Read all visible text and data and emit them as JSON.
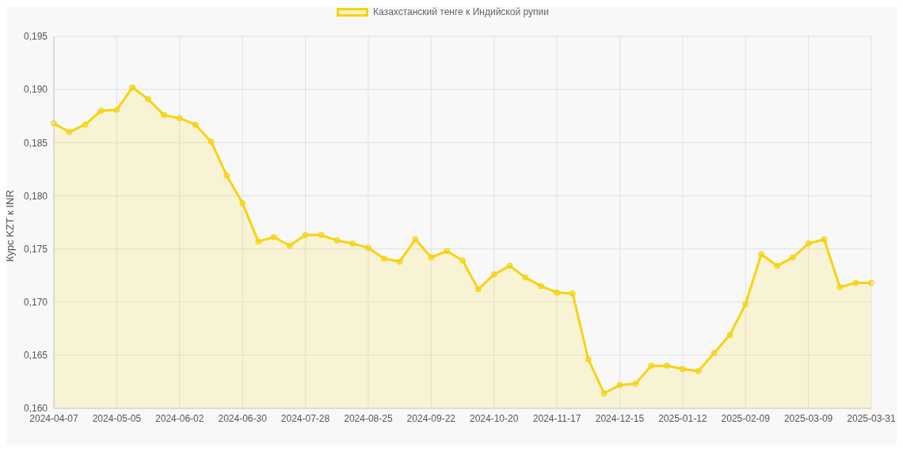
{
  "chart_data": {
    "type": "area",
    "categories": [
      "2024-04-07",
      null,
      null,
      null,
      "2024-05-05",
      null,
      null,
      null,
      "2024-06-02",
      null,
      null,
      null,
      "2024-06-30",
      null,
      null,
      null,
      "2024-07-28",
      null,
      null,
      null,
      "2024-08-25",
      null,
      null,
      null,
      "2024-09-22",
      null,
      null,
      null,
      "2024-10-20",
      null,
      null,
      null,
      "2024-11-17",
      null,
      null,
      null,
      "2024-12-15",
      null,
      null,
      null,
      "2025-01-12",
      null,
      null,
      null,
      "2025-02-09",
      null,
      null,
      null,
      "2025-03-09",
      null,
      null,
      null,
      "2025-03-31"
    ],
    "series": [
      {
        "name": "Казахстанский тенге к Индийской рупии",
        "color": "#f5d40f",
        "values": [
          0.1868,
          0.186,
          0.1867,
          0.188,
          0.1881,
          0.1902,
          0.1891,
          0.1876,
          0.1873,
          0.1867,
          0.1851,
          0.1819,
          0.1793,
          0.1757,
          0.1761,
          0.1753,
          0.1763,
          0.1763,
          0.1758,
          0.1755,
          0.1751,
          0.1741,
          0.1738,
          0.1759,
          0.1742,
          0.1748,
          0.1739,
          0.1712,
          0.1726,
          0.1734,
          0.1723,
          0.1715,
          0.1709,
          0.1708,
          0.1646,
          0.1614,
          0.1622,
          0.1623,
          0.164,
          0.164,
          0.1637,
          0.1635,
          0.1652,
          0.1669,
          0.1698,
          0.1745,
          0.1734,
          0.1742,
          0.1755,
          0.1759,
          0.1714,
          0.1718,
          0.1718
        ]
      }
    ],
    "ylabel": "Курс KZT к INR",
    "ylim": [
      0.16,
      0.195
    ],
    "yticks": [
      {
        "value": 0.16,
        "label": "0,160"
      },
      {
        "value": 0.165,
        "label": "0,165"
      },
      {
        "value": 0.17,
        "label": "0,170"
      },
      {
        "value": 0.175,
        "label": "0,175"
      },
      {
        "value": 0.18,
        "label": "0,180"
      },
      {
        "value": 0.185,
        "label": "0,185"
      },
      {
        "value": 0.19,
        "label": "0,190"
      },
      {
        "value": 0.195,
        "label": "0,195"
      }
    ],
    "grid": true,
    "legend": "top",
    "marker": "circle",
    "line_style": "solid"
  }
}
